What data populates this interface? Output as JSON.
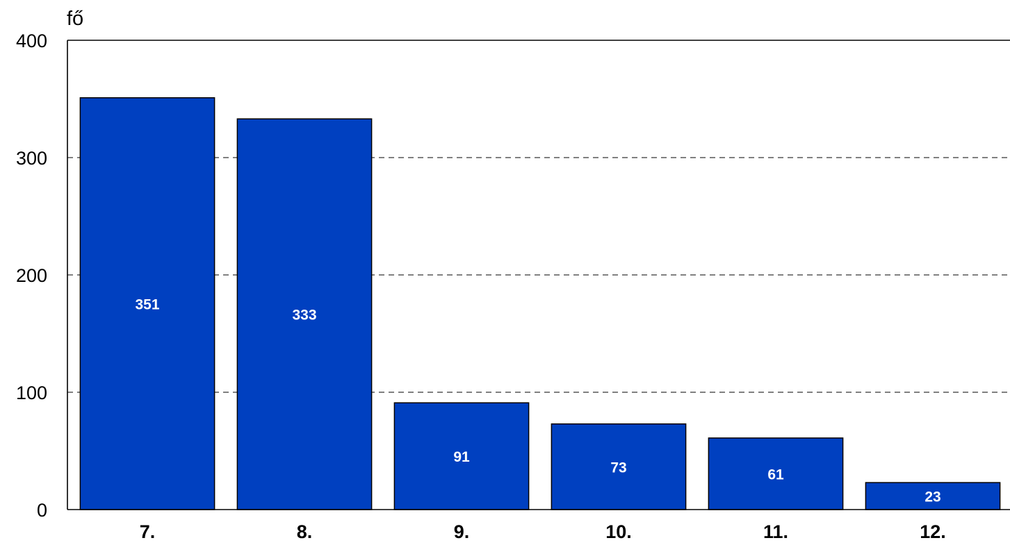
{
  "chart_data": {
    "type": "bar",
    "unit_label": "fő",
    "categories": [
      "7.",
      "8.",
      "9.",
      "10.",
      "11.",
      "12."
    ],
    "values": [
      351,
      333,
      91,
      73,
      61,
      23
    ],
    "data_labels": [
      "351",
      "333",
      "91",
      "73",
      "61",
      "23"
    ],
    "ylim": [
      0,
      400
    ],
    "yticks": [
      0,
      100,
      200,
      300,
      400
    ],
    "grid": "dashed horizontal",
    "bar_color": "#0040C0",
    "legend": "none"
  }
}
